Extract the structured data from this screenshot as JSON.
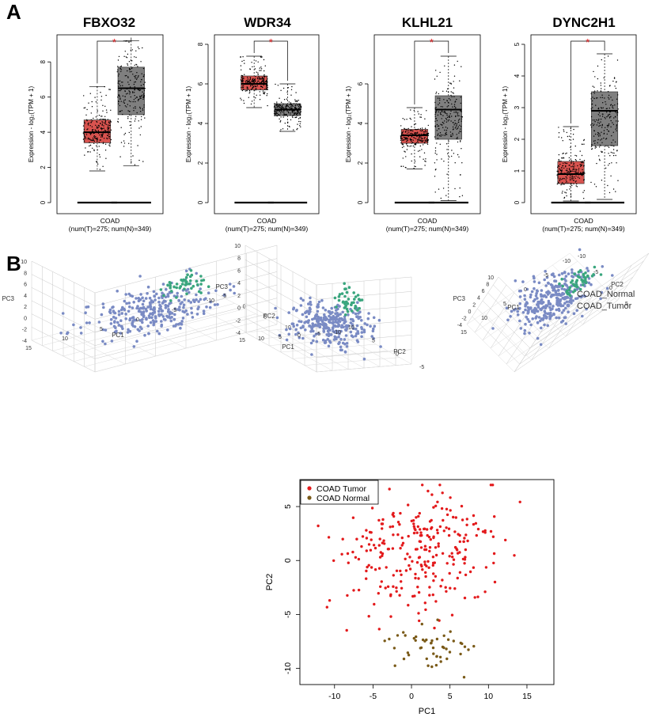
{
  "panel_labels": {
    "a": "A",
    "b": "B"
  },
  "legend_3d": {
    "items": [
      {
        "label": "COAD_Normal",
        "color": "#3aa67e"
      },
      {
        "label": "COAD_Tumor",
        "color": "#7a8bc4"
      }
    ]
  },
  "pca_3d_views": [
    {
      "axis_labels": {
        "x": "PC1",
        "y": "PC2",
        "z": "PC3"
      },
      "tick_labels": [
        "10",
        "8",
        "6",
        "4",
        "2",
        "0",
        "-2",
        "-4",
        "15",
        "10",
        "5",
        "0",
        "-5",
        "-10",
        "-5",
        "0",
        "5",
        "10"
      ]
    },
    {
      "axis_labels": {
        "x": "PC1",
        "y": "PC2",
        "z": "PC3"
      },
      "tick_labels": [
        "10",
        "8",
        "6",
        "4",
        "2",
        "0",
        "-2",
        "-4",
        "15",
        "10",
        "5",
        "0",
        "-5",
        "-10",
        "10",
        "5",
        "0",
        "-5"
      ]
    },
    {
      "axis_labels": {
        "x": "PC1",
        "y": "PC2",
        "z": "PC3"
      },
      "tick_labels": [
        "10",
        "8",
        "6",
        "4",
        "2",
        "0",
        "-2",
        "-4",
        "15",
        "10",
        "5",
        "0",
        "-5",
        "-10",
        "-10",
        "-5",
        "0",
        "5"
      ]
    }
  ],
  "chart_data": [
    {
      "type": "box",
      "title": "FBXO32",
      "ylabel": "Expression - log₂(TPM + 1)",
      "xlabel": "COAD",
      "x_sublabel": "(num(T)=275; num(N)=349)",
      "ylim": [
        0,
        9
      ],
      "yticks": [
        0,
        2,
        4,
        6,
        8
      ],
      "significance": "*",
      "groups": [
        {
          "name": "Tumor",
          "color": "#d9534f",
          "min": 1.8,
          "q1": 3.4,
          "median": 4.0,
          "q3": 4.7,
          "max": 6.6
        },
        {
          "name": "Normal",
          "color": "#7f7f7f",
          "min": 2.1,
          "q1": 5.0,
          "median": 6.5,
          "q3": 7.7,
          "max": 9.2
        }
      ]
    },
    {
      "type": "box",
      "title": "WDR34",
      "ylabel": "Expression - log₂(TPM + 1)",
      "xlabel": "COAD",
      "x_sublabel": "(num(T)=275; num(N)=349)",
      "ylim": [
        0,
        8
      ],
      "yticks": [
        0,
        2,
        4,
        6,
        8
      ],
      "significance": "*",
      "groups": [
        {
          "name": "Tumor",
          "color": "#d9534f",
          "min": 4.8,
          "q1": 5.7,
          "median": 6.0,
          "q3": 6.4,
          "max": 7.4
        },
        {
          "name": "Normal",
          "color": "#7f7f7f",
          "min": 3.6,
          "q1": 4.4,
          "median": 4.7,
          "q3": 5.0,
          "max": 6.0
        }
      ]
    },
    {
      "type": "box",
      "title": "KLHL21",
      "ylabel": "Expression - log₂(TPM + 1)",
      "xlabel": "COAD",
      "x_sublabel": "(num(T)=275; num(N)=349)",
      "ylim": [
        0,
        8
      ],
      "yticks": [
        0,
        2,
        4,
        6
      ],
      "significance": "*",
      "groups": [
        {
          "name": "Tumor",
          "color": "#d9534f",
          "min": 1.7,
          "q1": 3.0,
          "median": 3.4,
          "q3": 3.7,
          "max": 4.8
        },
        {
          "name": "Normal",
          "color": "#7f7f7f",
          "min": 0.1,
          "q1": 3.2,
          "median": 4.7,
          "q3": 5.4,
          "max": 7.4
        }
      ]
    },
    {
      "type": "box",
      "title": "DYNC2H1",
      "ylabel": "Expression - log₂(TPM + 1)",
      "xlabel": "COAD",
      "x_sublabel": "(num(T)=275; num(N)=349)",
      "ylim": [
        0,
        5
      ],
      "yticks": [
        0,
        1,
        2,
        3,
        4,
        5
      ],
      "significance": "*",
      "groups": [
        {
          "name": "Tumor",
          "color": "#d9534f",
          "min": 0.05,
          "q1": 0.6,
          "median": 0.9,
          "q3": 1.3,
          "max": 2.4
        },
        {
          "name": "Normal",
          "color": "#7f7f7f",
          "min": 0.1,
          "q1": 1.8,
          "median": 2.9,
          "q3": 3.5,
          "max": 4.7
        }
      ]
    },
    {
      "type": "scatter",
      "xlabel": "PC1",
      "ylabel": "PC2",
      "xlim": [
        -14.5,
        18.5
      ],
      "ylim": [
        -11.5,
        7.5
      ],
      "xticks": [
        -10,
        -5,
        0,
        5,
        10,
        15
      ],
      "yticks": [
        -10,
        -5,
        0,
        5
      ],
      "legend_position": "top-left",
      "series": [
        {
          "name": "COAD Tumor",
          "color": "#e31a1c",
          "n": 275,
          "x_range": [
            -13,
            18
          ],
          "y_range": [
            -6.5,
            7
          ],
          "center": [
            0.5,
            1.0
          ],
          "spread": [
            5.2,
            2.9
          ]
        },
        {
          "name": "COAD Normal",
          "color": "#7a5a18",
          "n": 50,
          "x_range": [
            -5,
            13
          ],
          "y_range": [
            -11.2,
            -5.5
          ],
          "center": [
            2.5,
            -8.0
          ],
          "spread": [
            2.6,
            1.1
          ]
        }
      ]
    }
  ]
}
